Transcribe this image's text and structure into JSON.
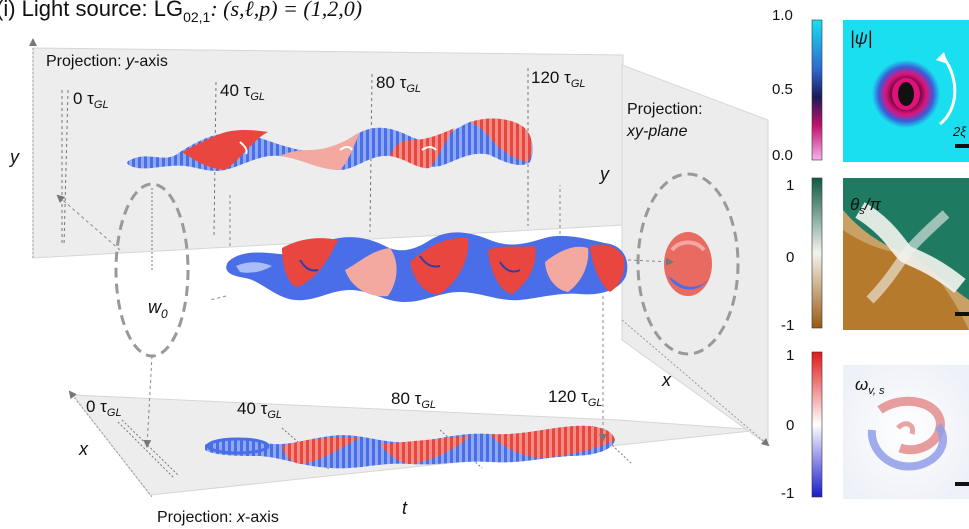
{
  "header": {
    "title_prefix": "(i) Light source: LG",
    "title_sub": "02,1",
    "title_suffix": ": (s,ℓ,p) = (1,2,0)"
  },
  "panel_y": {
    "title_prefix": "Projection: ",
    "title_axis": "y",
    "title_suffix": "-axis",
    "axis_label": "y",
    "times": [
      {
        "value": "0 τ",
        "sub": "GL"
      },
      {
        "value": "40 τ",
        "sub": "GL"
      },
      {
        "value": "80 τ",
        "sub": "GL"
      },
      {
        "value": "120 τ",
        "sub": "GL"
      }
    ]
  },
  "panel_x": {
    "title_prefix": "Projection: ",
    "title_axis": "x",
    "title_suffix": "-axis",
    "axis_label": "x",
    "t_label": "t",
    "times": [
      {
        "value": "0 τ",
        "sub": "GL"
      },
      {
        "value": "40 τ",
        "sub": "GL"
      },
      {
        "value": "80 τ",
        "sub": "GL"
      },
      {
        "value": "120 τ",
        "sub": "GL"
      }
    ]
  },
  "panel_xy": {
    "title_line1": "Projection:",
    "title_line2": "xy-plane",
    "y_label": "y",
    "x_label": "x"
  },
  "beam": {
    "waist_label": "w",
    "waist_sub": "0"
  },
  "insets": {
    "psi": {
      "label": "|ψ|",
      "ticks": [
        "1.0",
        "0.5",
        "0.0"
      ],
      "scale_label": "2ξ",
      "colors": [
        "#19dff0",
        "#1d2e9a",
        "#111111",
        "#e0127a",
        "#f6a9e9"
      ]
    },
    "theta": {
      "label_prefix": "θ",
      "label_sub": "s",
      "label_suffix": "/π",
      "ticks": [
        "1",
        "0",
        "-1"
      ],
      "colors": [
        "#0d5a45",
        "#f4f4ef",
        "#9a5a12"
      ]
    },
    "omega": {
      "label_prefix": "ω",
      "label_sub": "v, s",
      "ticks": [
        "1",
        "0",
        "-1"
      ],
      "colors": [
        "#e01a1a",
        "#ffffff",
        "#1a1acc"
      ]
    }
  },
  "colors": {
    "vortex_red": "#e8463f",
    "vortex_blue": "#4a6ee8",
    "vortex_light_red": "#f3a9a0",
    "vortex_light_blue": "#a9bdf6",
    "plane_gray": "#ececec"
  }
}
